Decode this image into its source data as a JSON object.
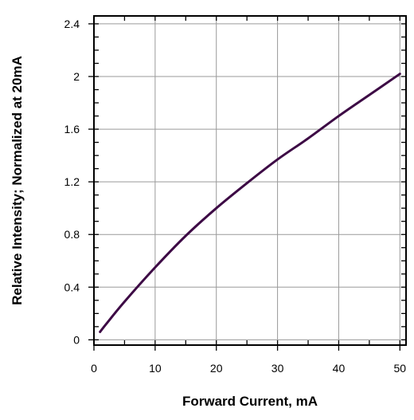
{
  "chart_data": {
    "type": "line",
    "title": "",
    "xlabel": "Forward Current, mA",
    "ylabel": "Relative Intensity; Normalized at 20mA",
    "xlim": [
      0,
      51
    ],
    "ylim": [
      -0.04,
      2.46
    ],
    "x_ticks": [
      0,
      10,
      20,
      30,
      40,
      50
    ],
    "y_ticks": [
      0,
      0.4,
      0.8,
      1.2,
      1.6,
      2,
      2.4
    ],
    "x_tick_labels": [
      "0",
      "10",
      "20",
      "30",
      "40",
      "50"
    ],
    "y_tick_labels": [
      "0",
      "0.4",
      "0.8",
      "1.2",
      "1.6",
      "2",
      "2.4"
    ],
    "grid": true,
    "legend": "none",
    "series": [
      {
        "color": "#3d0a45",
        "points": [
          [
            1,
            0.06
          ],
          [
            2,
            0.12
          ],
          [
            5,
            0.29
          ],
          [
            10,
            0.55
          ],
          [
            15,
            0.79
          ],
          [
            20,
            1.0
          ],
          [
            25,
            1.19
          ],
          [
            30,
            1.37
          ],
          [
            35,
            1.53
          ],
          [
            40,
            1.7
          ],
          [
            45,
            1.86
          ],
          [
            50,
            2.02
          ]
        ]
      }
    ]
  }
}
